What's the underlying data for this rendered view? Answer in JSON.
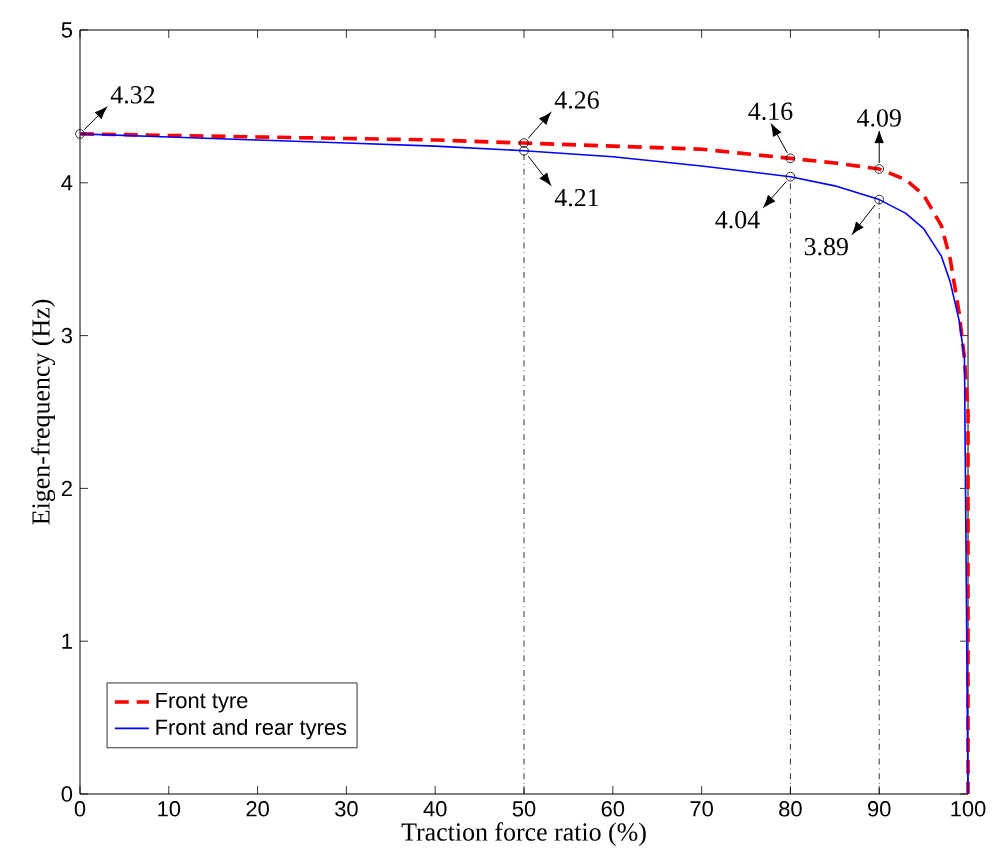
{
  "chart_data": {
    "type": "line",
    "xlabel": "Traction force ratio (%)",
    "ylabel": "Eigen-frequency (Hz)",
    "xlim": [
      0,
      100
    ],
    "ylim": [
      0,
      5
    ],
    "xticks": [
      0,
      10,
      20,
      30,
      40,
      50,
      60,
      70,
      80,
      90,
      100
    ],
    "yticks": [
      0,
      1,
      2,
      3,
      4,
      5
    ],
    "series": [
      {
        "name": "Front tyre",
        "color": "#ff0000",
        "line_style": "dashed",
        "x": [
          0,
          10,
          20,
          30,
          40,
          50,
          60,
          70,
          80,
          85,
          90,
          93,
          95,
          97,
          98,
          99,
          99.6,
          100,
          100
        ],
        "values": [
          4.32,
          4.31,
          4.3,
          4.29,
          4.28,
          4.26,
          4.24,
          4.22,
          4.16,
          4.13,
          4.09,
          4.02,
          3.92,
          3.72,
          3.5,
          3.15,
          2.85,
          2.5,
          0
        ]
      },
      {
        "name": "Front and rear tyres",
        "color": "#0000ff",
        "line_style": "solid",
        "x": [
          0,
          10,
          20,
          30,
          40,
          50,
          60,
          70,
          80,
          85,
          90,
          93,
          95,
          97,
          98,
          99,
          99.6,
          100
        ],
        "values": [
          4.32,
          4.3,
          4.28,
          4.26,
          4.24,
          4.21,
          4.17,
          4.11,
          4.04,
          3.98,
          3.89,
          3.8,
          3.7,
          3.52,
          3.35,
          3.1,
          2.85,
          0
        ]
      }
    ],
    "annotations": [
      {
        "text": "4.32",
        "x": 0,
        "y": 4.32
      },
      {
        "text": "4.26",
        "x": 50,
        "y": 4.26
      },
      {
        "text": "4.21",
        "x": 50,
        "y": 4.21
      },
      {
        "text": "4.16",
        "x": 80,
        "y": 4.16
      },
      {
        "text": "4.04",
        "x": 80,
        "y": 4.04
      },
      {
        "text": "4.09",
        "x": 90,
        "y": 4.09
      },
      {
        "text": "3.89",
        "x": 90,
        "y": 3.89
      }
    ],
    "ref_lines": [
      {
        "axis": "x",
        "value": 50,
        "line_style": "dashdotted"
      },
      {
        "axis": "x",
        "value": 80,
        "line_style": "dashdotted"
      },
      {
        "axis": "x",
        "value": 90,
        "line_style": "dashdotted"
      }
    ],
    "legend": "bottom left",
    "grid": false
  }
}
